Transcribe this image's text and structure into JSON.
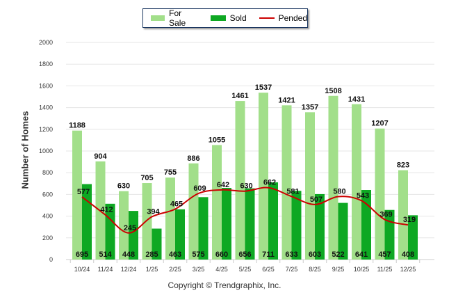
{
  "chart_data": {
    "type": "bar",
    "title": "",
    "xlabel": "",
    "ylabel": "Number of Homes",
    "ylim": [
      0,
      2000
    ],
    "yticks": [
      0,
      200,
      400,
      600,
      800,
      1000,
      1200,
      1400,
      1600,
      1800,
      2000
    ],
    "grid": true,
    "legend_placement": "top-center",
    "categories": [
      "10/24",
      "11/24",
      "12/24",
      "1/25",
      "2/25",
      "3/25",
      "4/25",
      "5/25",
      "6/25",
      "7/25",
      "8/25",
      "9/25",
      "10/25",
      "11/25",
      "12/25"
    ],
    "series": [
      {
        "name": "For Sale",
        "type": "bar",
        "color": "#a2df8a",
        "values": [
          1188,
          904,
          630,
          705,
          755,
          886,
          1055,
          1461,
          1537,
          1421,
          1357,
          1508,
          1431,
          1207,
          823
        ]
      },
      {
        "name": "Sold",
        "type": "bar",
        "color": "#0ea823",
        "values": [
          695,
          514,
          448,
          285,
          463,
          575,
          660,
          656,
          711,
          633,
          603,
          522,
          641,
          457,
          408
        ]
      },
      {
        "name": "Pended",
        "type": "line",
        "color": "#cc0000",
        "values": [
          577,
          412,
          245,
          394,
          465,
          609,
          642,
          630,
          662,
          581,
          507,
          580,
          543,
          369,
          319
        ]
      }
    ]
  },
  "copyright": "Copyright © Trendgraphix, Inc."
}
